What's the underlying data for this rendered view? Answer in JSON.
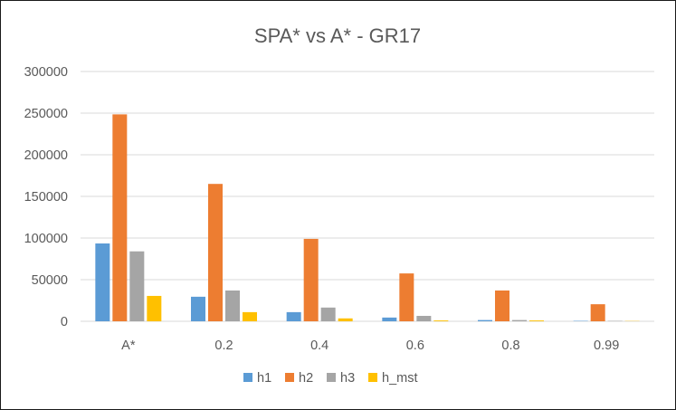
{
  "chart_data": {
    "type": "bar",
    "title": "SPA* vs A* - GR17",
    "xlabel": "",
    "ylabel": "",
    "categories": [
      "A*",
      "0.2",
      "0.4",
      "0.6",
      "0.8",
      "0.99"
    ],
    "series": [
      {
        "name": "h1",
        "color": "#5b9bd5",
        "values": [
          93500,
          29500,
          11000,
          4500,
          1500,
          500
        ]
      },
      {
        "name": "h2",
        "color": "#ed7d31",
        "values": [
          248500,
          165000,
          99000,
          57500,
          37000,
          20500
        ]
      },
      {
        "name": "h3",
        "color": "#a5a5a5",
        "values": [
          84000,
          37000,
          16500,
          6500,
          1500,
          500
        ]
      },
      {
        "name": "h_mst",
        "color": "#ffc000",
        "values": [
          30500,
          11000,
          3500,
          1000,
          1000,
          300
        ]
      }
    ],
    "ylim": [
      0,
      300000
    ],
    "yticks": [
      "0",
      "50000",
      "100000",
      "150000",
      "200000",
      "250000",
      "300000"
    ],
    "grid": true,
    "legend": "bottom"
  }
}
